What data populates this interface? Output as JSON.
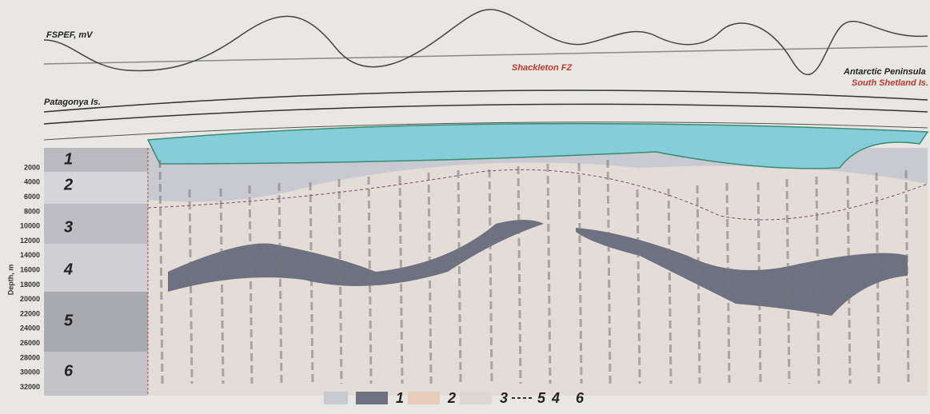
{
  "panel_label": "FSPEF, mV",
  "annotations": {
    "fault_zone": "Shackleton FZ",
    "east_top": "Antarctic Peninsula",
    "east_bottom": "South Shetland Is.",
    "west": "Patagonya Is."
  },
  "depth_axis": {
    "label": "Depth, m",
    "ticks": [
      "2000",
      "4000",
      "6000",
      "8000",
      "10000",
      "12000",
      "14000",
      "16000",
      "18000",
      "20000",
      "22000",
      "24000",
      "26000",
      "28000",
      "30000",
      "32000"
    ]
  },
  "layers": [
    "1",
    "2",
    "3",
    "4",
    "5",
    "6"
  ],
  "legend": [
    "1",
    "2",
    "3",
    "4",
    "5",
    "6"
  ]
}
